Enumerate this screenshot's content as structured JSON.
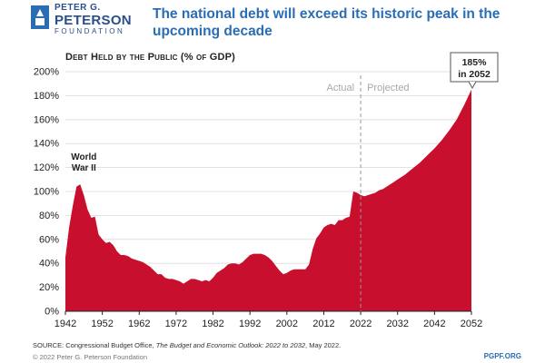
{
  "header": {
    "logo_line1": "PETER G.",
    "logo_line2": "PETERSON",
    "logo_line3": "FOUNDATION",
    "headline_line1": "The national debt will exceed its historic peak in the",
    "headline_line2": "upcoming decade"
  },
  "chart_data": {
    "type": "area",
    "title": "Debt Held by the Public (% of GDP)",
    "xlabel": "",
    "ylabel": "",
    "xlim": [
      1942,
      2052
    ],
    "ylim": [
      0,
      200
    ],
    "x_ticks": [
      1942,
      1952,
      1962,
      1972,
      1982,
      1992,
      2002,
      2012,
      2022,
      2032,
      2042,
      2052
    ],
    "y_ticks": [
      0,
      20,
      40,
      60,
      80,
      100,
      120,
      140,
      160,
      180,
      200
    ],
    "y_tick_suffix": "%",
    "grid": "horizontal",
    "fill_color": "#c8102e",
    "divider_year": 2022,
    "divider_labels": {
      "left": "Actual",
      "right": "Projected"
    },
    "annotations": [
      {
        "text_line1": "World",
        "text_line2": "War II",
        "x": 1947,
        "y": 125
      },
      {
        "text_line1": "185%",
        "text_line2": "in 2052",
        "x": 2052,
        "y": 185
      }
    ],
    "series": [
      {
        "values": [
          [
            1942,
            45
          ],
          [
            1943,
            70
          ],
          [
            1944,
            88
          ],
          [
            1945,
            104
          ],
          [
            1946,
            106
          ],
          [
            1947,
            97
          ],
          [
            1948,
            85
          ],
          [
            1949,
            78
          ],
          [
            1950,
            79
          ],
          [
            1951,
            64
          ],
          [
            1952,
            60
          ],
          [
            1953,
            57
          ],
          [
            1954,
            58
          ],
          [
            1955,
            55
          ],
          [
            1956,
            50
          ],
          [
            1957,
            47
          ],
          [
            1958,
            47
          ],
          [
            1959,
            46
          ],
          [
            1960,
            44
          ],
          [
            1961,
            43
          ],
          [
            1962,
            42
          ],
          [
            1963,
            41
          ],
          [
            1964,
            39
          ],
          [
            1965,
            37
          ],
          [
            1966,
            34
          ],
          [
            1967,
            31
          ],
          [
            1968,
            31
          ],
          [
            1969,
            28
          ],
          [
            1970,
            27
          ],
          [
            1971,
            27
          ],
          [
            1972,
            26
          ],
          [
            1973,
            25
          ],
          [
            1974,
            23
          ],
          [
            1975,
            25
          ],
          [
            1976,
            27
          ],
          [
            1977,
            27
          ],
          [
            1978,
            26
          ],
          [
            1979,
            25
          ],
          [
            1980,
            26
          ],
          [
            1981,
            25
          ],
          [
            1982,
            28
          ],
          [
            1983,
            32
          ],
          [
            1984,
            34
          ],
          [
            1985,
            36
          ],
          [
            1986,
            39
          ],
          [
            1987,
            40
          ],
          [
            1988,
            40
          ],
          [
            1989,
            39
          ],
          [
            1990,
            41
          ],
          [
            1991,
            44
          ],
          [
            1992,
            47
          ],
          [
            1993,
            48
          ],
          [
            1994,
            48
          ],
          [
            1995,
            48
          ],
          [
            1996,
            47
          ],
          [
            1997,
            45
          ],
          [
            1998,
            42
          ],
          [
            1999,
            38
          ],
          [
            2000,
            34
          ],
          [
            2001,
            31
          ],
          [
            2002,
            32
          ],
          [
            2003,
            34
          ],
          [
            2004,
            35
          ],
          [
            2005,
            35
          ],
          [
            2006,
            35
          ],
          [
            2007,
            35
          ],
          [
            2008,
            39
          ],
          [
            2009,
            52
          ],
          [
            2010,
            61
          ],
          [
            2011,
            65
          ],
          [
            2012,
            70
          ],
          [
            2013,
            72
          ],
          [
            2014,
            73
          ],
          [
            2015,
            72
          ],
          [
            2016,
            76
          ],
          [
            2017,
            76
          ],
          [
            2018,
            78
          ],
          [
            2019,
            79
          ],
          [
            2020,
            100
          ],
          [
            2021,
            99
          ],
          [
            2022,
            97
          ],
          [
            2023,
            96
          ],
          [
            2024,
            97
          ],
          [
            2025,
            98
          ],
          [
            2026,
            99
          ],
          [
            2027,
            101
          ],
          [
            2028,
            102
          ],
          [
            2029,
            104
          ],
          [
            2030,
            106
          ],
          [
            2031,
            108
          ],
          [
            2032,
            110
          ],
          [
            2034,
            114
          ],
          [
            2036,
            119
          ],
          [
            2038,
            124
          ],
          [
            2040,
            130
          ],
          [
            2042,
            136
          ],
          [
            2044,
            143
          ],
          [
            2046,
            151
          ],
          [
            2048,
            160
          ],
          [
            2050,
            172
          ],
          [
            2052,
            185
          ]
        ]
      }
    ]
  },
  "footer": {
    "source_prefix": "SOURCE: Congressional Budget Office, ",
    "source_italic": "The Budget and Economic Outlook: 2022 to 2032",
    "source_suffix": ", May 2022.",
    "copyright": "© 2022 Peter G. Peterson Foundation",
    "site": "PGPF.ORG"
  }
}
